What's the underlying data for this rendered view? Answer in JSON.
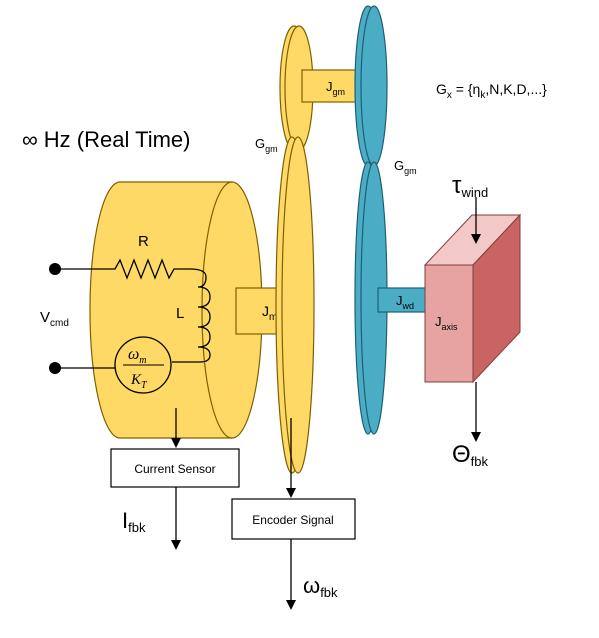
{
  "title": "∞ Hz (Real Time)",
  "params": {
    "prefix": "G",
    "prefix_sub": "x",
    "eq": " = {",
    "eta": "η",
    "eta_sub": "k",
    "rest": ",N,K,D,...}"
  },
  "labels": {
    "g_gm_left": {
      "main": "G",
      "sub": "gm"
    },
    "g_gm_right": {
      "main": "G",
      "sub": "gm"
    },
    "j_gm": {
      "main": "J",
      "sub": "gm"
    },
    "j_m": {
      "main": "J",
      "sub": "m"
    },
    "j_wd": {
      "main": "J",
      "sub": "wd"
    },
    "j_axis": {
      "main": "J",
      "sub": "axis"
    },
    "tau_wind": {
      "main": "τ",
      "sub": "wind"
    },
    "theta_fbk": {
      "main": "Θ",
      "sub": "fbk"
    },
    "i_fbk": {
      "main": "I",
      "sub": "fbk"
    },
    "omega_fbk": {
      "main": "ω",
      "sub": "fbk"
    },
    "v_cmd": {
      "main": "V",
      "sub": "cmd"
    }
  },
  "circuit": {
    "resistor": "R",
    "inductor": "L",
    "omega": "ω",
    "omega_sub": "m",
    "kt": "K",
    "kt_sub": "T"
  },
  "boxes": {
    "current_sensor": "Current Sensor",
    "encoder_signal": "Encoder Signal"
  },
  "colors": {
    "motor_yellow": "#FFD966",
    "gear_blue": "#4BACC6",
    "axis_front": "#E6A3A1",
    "axis_side": "#C96463",
    "axis_top": "#F2C9C7"
  }
}
